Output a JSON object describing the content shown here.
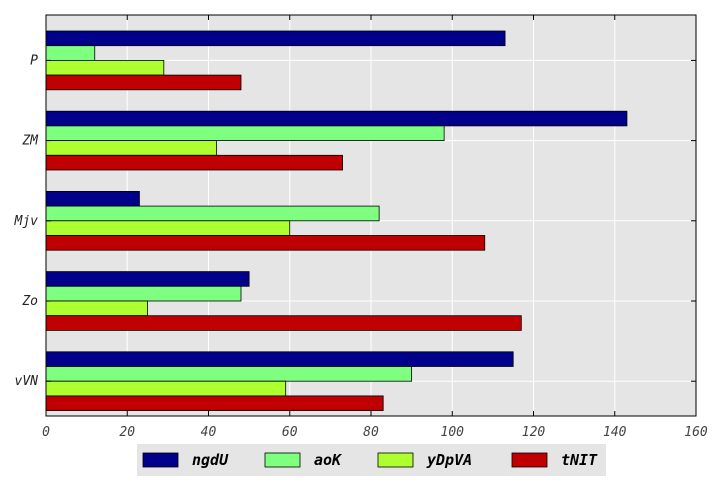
{
  "chart_data": {
    "type": "bar",
    "orientation": "horizontal",
    "categories": [
      "P",
      "ZM",
      "Mjv",
      "Zo",
      "vVN"
    ],
    "series": [
      {
        "name": "ngdU",
        "color": "#00008b",
        "values": [
          113,
          143,
          23,
          50,
          115
        ]
      },
      {
        "name": "aoK",
        "color": "#7fff7f",
        "values": [
          12,
          98,
          82,
          48,
          90
        ]
      },
      {
        "name": "yDpVA",
        "color": "#adff2f",
        "values": [
          29,
          42,
          60,
          25,
          59
        ]
      },
      {
        "name": "tNIT",
        "color": "#c00000",
        "values": [
          48,
          73,
          108,
          117,
          83
        ]
      }
    ],
    "xlim": [
      0,
      160
    ],
    "xticks": [
      "0",
      "20",
      "40",
      "60",
      "80",
      "100",
      "120",
      "140",
      "160"
    ],
    "grid": true,
    "legend_position": "bottom-center",
    "title": "",
    "xlabel": "",
    "ylabel": ""
  }
}
